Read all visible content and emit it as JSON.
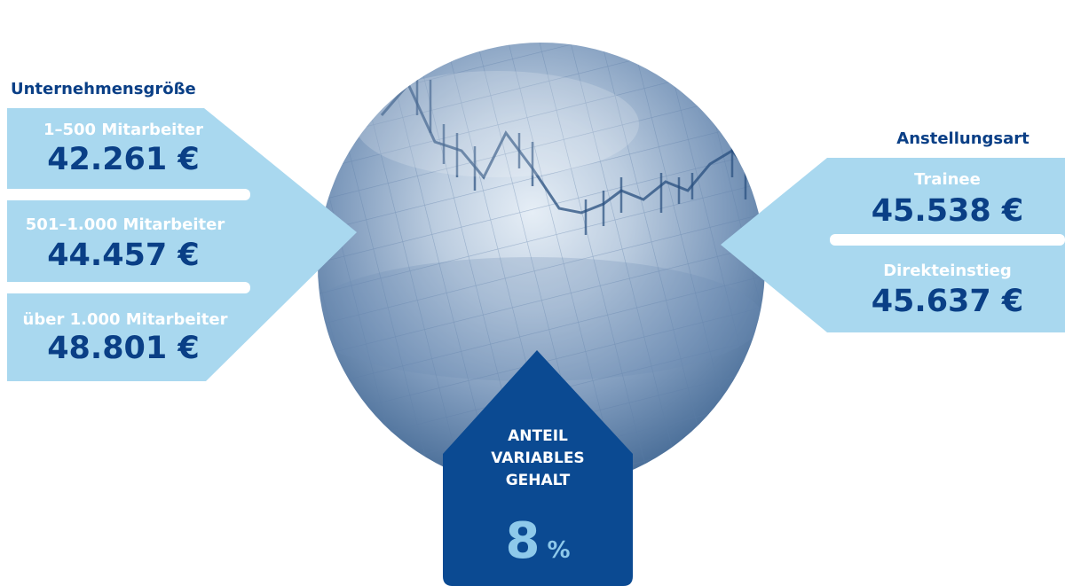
{
  "colors": {
    "dark_blue": "#0a3f86",
    "light_blue": "#a9d8ef",
    "tag_blue": "#0b4a92",
    "percent_blue": "#8ec9ea"
  },
  "left": {
    "title": "Unternehmensgröße",
    "items": [
      {
        "label": "1–500 Mitarbeiter",
        "value": "42.261 €"
      },
      {
        "label": "501–1.000 Mitarbeiter",
        "value": "44.457 €"
      },
      {
        "label": "über 1.000 Mitarbeiter",
        "value": "48.801 €"
      }
    ]
  },
  "right": {
    "title": "Anstellungsart",
    "items": [
      {
        "label": "Trainee",
        "value": "45.538 €"
      },
      {
        "label": "Direkteinstieg",
        "value": "45.637 €"
      }
    ]
  },
  "bottom": {
    "line1": "ANTEIL",
    "line2": "VARIABLES",
    "line3": "GEHALT",
    "value": "8",
    "unit": "%"
  }
}
